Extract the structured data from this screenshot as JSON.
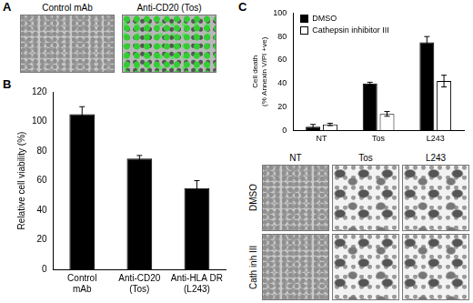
{
  "panel_labels": {
    "a": "A",
    "b": "B",
    "c": "C"
  },
  "panel_a": {
    "images": [
      "Control mAb",
      "Anti-CD20 (Tos)"
    ]
  },
  "chart_data": [
    {
      "type": "bar",
      "y_label": "Relative cell viability (%)",
      "categories": [
        "Control mAb",
        "Anti-CD20 (Tos)",
        "Anti-HLA DR (L243)"
      ],
      "values": [
        105,
        75,
        55
      ],
      "errors": [
        5,
        2,
        5
      ],
      "color": "#000000",
      "ylim": [
        0,
        120
      ],
      "yticks": [
        0,
        20,
        40,
        60,
        80,
        100,
        120
      ],
      "grid": false
    },
    {
      "type": "bar",
      "y_label": "Cell death (% Annexin V/PI +ve)",
      "categories": [
        "NT",
        "Tos",
        "L243"
      ],
      "series": [
        {
          "name": "DMSO",
          "color": "#000000",
          "values": [
            3,
            40,
            75
          ],
          "errors": [
            2,
            1,
            5
          ]
        },
        {
          "name": "Cathepsin inhibitor III",
          "color": "#ffffff",
          "values": [
            5,
            14,
            42
          ],
          "errors": [
            1,
            2,
            5
          ]
        }
      ],
      "ylim": [
        0,
        100
      ],
      "yticks": [
        0,
        20,
        40,
        60,
        80,
        100
      ],
      "grid": false,
      "legend": "top-left"
    }
  ],
  "panel_c_images": {
    "columns": [
      "NT",
      "Tos",
      "L243"
    ],
    "rows": [
      "DMSO",
      "Cath inh III"
    ]
  }
}
